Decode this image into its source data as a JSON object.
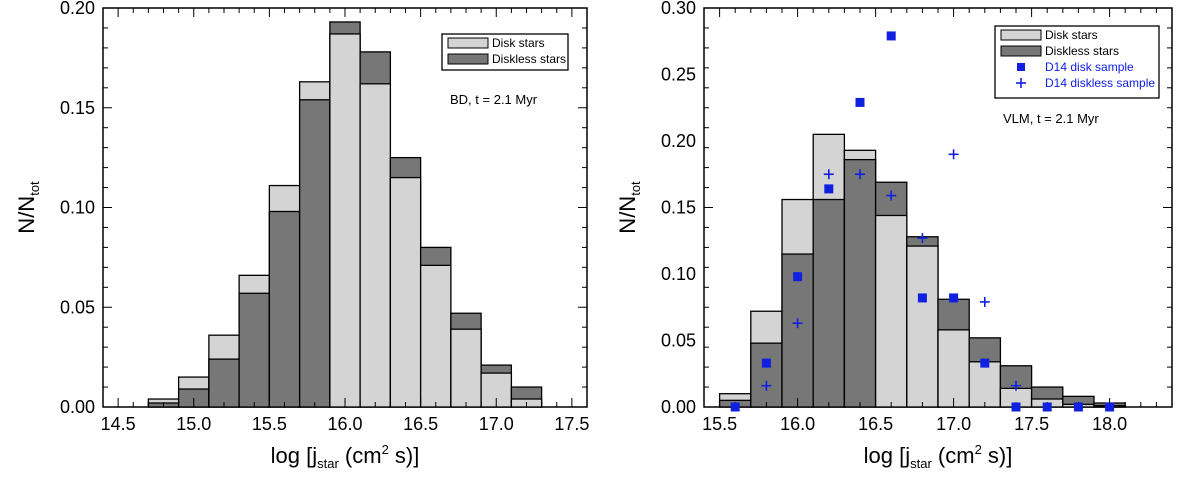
{
  "figure": {
    "colors": {
      "disk": "#d4d4d4",
      "diskless": "#777777",
      "edge": "#000000",
      "marker": "#1020e0"
    }
  },
  "chart_data": [
    {
      "type": "bar",
      "panel": "left",
      "title": "",
      "xlabel": "log [j_star (cm^2 s)]",
      "ylabel": "N/N_tot",
      "xlim": [
        14.4,
        17.6
      ],
      "ylim": [
        0.0,
        0.2
      ],
      "xticks_major": [
        14.5,
        15.0,
        15.5,
        16.0,
        16.5,
        17.0,
        17.5
      ],
      "xtick_labels": [
        "14.5",
        "15.0",
        "15.5",
        "16.0",
        "16.5",
        "17.0",
        "17.5"
      ],
      "yticks_major": [
        0.0,
        0.05,
        0.1,
        0.15,
        0.2
      ],
      "ytick_labels": [
        "0.00",
        "0.05",
        "0.10",
        "0.15",
        "0.20"
      ],
      "bin_width": 0.2,
      "bin_starts": [
        14.7,
        14.9,
        15.1,
        15.3,
        15.5,
        15.7,
        15.9,
        16.1,
        16.3,
        16.5,
        16.7,
        16.9,
        17.1
      ],
      "series": [
        {
          "name": "Disk stars",
          "values": [
            0.004,
            0.015,
            0.036,
            0.066,
            0.111,
            0.163,
            0.187,
            0.162,
            0.115,
            0.071,
            0.039,
            0.017,
            0.004
          ]
        },
        {
          "name": "Diskless stars",
          "values": [
            0.002,
            0.009,
            0.024,
            0.057,
            0.098,
            0.154,
            0.193,
            0.178,
            0.125,
            0.08,
            0.047,
            0.021,
            0.01
          ]
        }
      ],
      "legend": {
        "position": "top-right",
        "entries": [
          "Disk stars",
          "Diskless stars"
        ]
      },
      "annotation": "BD, t =   2.1 Myr",
      "axis_title": {
        "y_main": "N/N",
        "y_sub": "tot",
        "x_main": "log [j",
        "x_sub": "star",
        "x_mid": " (cm",
        "x_sup": "2",
        "x_end": " s)]"
      }
    },
    {
      "type": "bar",
      "panel": "right",
      "title": "",
      "xlabel": "log [j_star (cm^2 s)]",
      "ylabel": "N/N_tot",
      "xlim": [
        15.4,
        18.4
      ],
      "ylim": [
        0.0,
        0.3
      ],
      "xticks_major": [
        15.5,
        16.0,
        16.5,
        17.0,
        17.5,
        18.0
      ],
      "xtick_labels": [
        "15.5",
        "16.0",
        "16.5",
        "17.0",
        "17.5",
        "18.0"
      ],
      "yticks_major": [
        0.0,
        0.05,
        0.1,
        0.15,
        0.2,
        0.25,
        0.3
      ],
      "ytick_labels": [
        "0.00",
        "0.05",
        "0.10",
        "0.15",
        "0.20",
        "0.25",
        "0.30"
      ],
      "bin_width": 0.2,
      "bin_starts": [
        15.5,
        15.7,
        15.9,
        16.1,
        16.3,
        16.5,
        16.7,
        16.9,
        17.1,
        17.3,
        17.5,
        17.7,
        17.9
      ],
      "series": [
        {
          "name": "Disk stars",
          "values": [
            0.01,
            0.072,
            0.156,
            0.205,
            0.193,
            0.144,
            0.121,
            0.058,
            0.034,
            0.014,
            0.006,
            0.002,
            0.001
          ]
        },
        {
          "name": "Diskless stars",
          "values": [
            0.005,
            0.048,
            0.115,
            0.156,
            0.186,
            0.169,
            0.128,
            0.081,
            0.052,
            0.031,
            0.015,
            0.008,
            0.003
          ]
        }
      ],
      "scatter": [
        {
          "name": "D14 disk sample",
          "marker": "square",
          "x": [
            15.6,
            15.8,
            16.0,
            16.2,
            16.4,
            16.6,
            16.8,
            17.0,
            17.2,
            17.4,
            17.6,
            17.8,
            18.0
          ],
          "y": [
            0.0,
            0.033,
            0.098,
            0.164,
            0.229,
            0.279,
            0.082,
            0.082,
            0.033,
            0.0,
            0.0,
            0.0,
            0.0
          ]
        },
        {
          "name": "D14 diskless sample",
          "marker": "plus",
          "x": [
            15.8,
            16.0,
            16.2,
            16.4,
            16.6,
            16.8,
            17.0,
            17.2,
            17.4
          ],
          "y": [
            0.016,
            0.063,
            0.175,
            0.175,
            0.159,
            0.127,
            0.19,
            0.079,
            0.016
          ]
        }
      ],
      "legend": {
        "position": "top-right",
        "entries": [
          "Disk stars",
          "Diskless stars",
          "D14 disk sample",
          "D14 diskless sample"
        ]
      },
      "annotation": "VLM, t =   2.1 Myr",
      "axis_title": {
        "y_main": "N/N",
        "y_sub": "tot",
        "x_main": "log [j",
        "x_sub": "star",
        "x_mid": " (cm",
        "x_sup": "2",
        "x_end": " s)]"
      }
    }
  ]
}
